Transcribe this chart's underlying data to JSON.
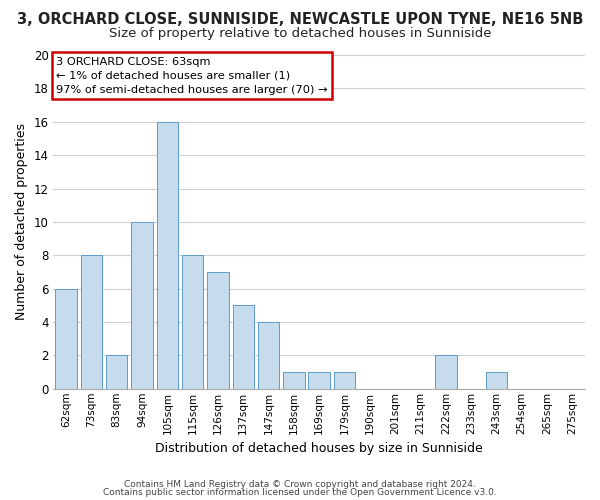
{
  "title": "3, ORCHARD CLOSE, SUNNISIDE, NEWCASTLE UPON TYNE, NE16 5NB",
  "subtitle": "Size of property relative to detached houses in Sunniside",
  "xlabel": "Distribution of detached houses by size in Sunniside",
  "ylabel": "Number of detached properties",
  "bar_color": "#c6dcec",
  "bar_edge_color": "#5b9dc9",
  "categories": [
    "62sqm",
    "73sqm",
    "83sqm",
    "94sqm",
    "105sqm",
    "115sqm",
    "126sqm",
    "137sqm",
    "147sqm",
    "158sqm",
    "169sqm",
    "179sqm",
    "190sqm",
    "201sqm",
    "211sqm",
    "222sqm",
    "233sqm",
    "243sqm",
    "254sqm",
    "265sqm",
    "275sqm"
  ],
  "values": [
    6,
    8,
    2,
    10,
    16,
    8,
    7,
    5,
    4,
    1,
    1,
    1,
    0,
    0,
    0,
    2,
    0,
    1,
    0,
    0,
    0
  ],
  "ylim": [
    0,
    20
  ],
  "yticks": [
    0,
    2,
    4,
    6,
    8,
    10,
    12,
    14,
    16,
    18,
    20
  ],
  "ann_line1": "3 ORCHARD CLOSE: 63sqm",
  "ann_line2": "← 1% of detached houses are smaller (1)",
  "ann_line3": "97% of semi-detached houses are larger (70) →",
  "annotation_box_color": "#ffffff",
  "annotation_box_edge": "#cc0000",
  "footer_line1": "Contains HM Land Registry data © Crown copyright and database right 2024.",
  "footer_line2": "Contains public sector information licensed under the Open Government Licence v3.0.",
  "background_color": "#ffffff",
  "grid_color": "#d0d0d0",
  "title_fontsize": 10.5,
  "subtitle_fontsize": 9.5
}
